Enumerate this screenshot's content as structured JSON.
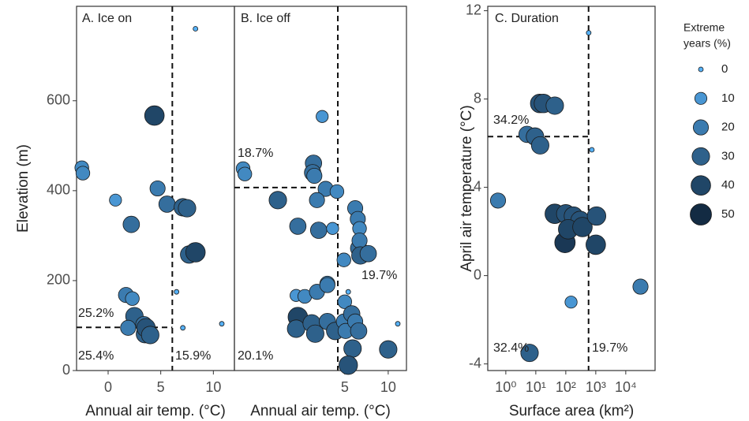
{
  "chart_data": [
    {
      "type": "scatter",
      "title": "A. Ice on",
      "x_label": "Annual air temp. (°C)",
      "y_label": "Elevation (m)",
      "xlim": [
        -3,
        12
      ],
      "ylim": [
        0,
        810
      ],
      "xticks": [
        0,
        5,
        10
      ],
      "yticks": [
        0,
        200,
        400,
        600
      ],
      "threshold_x": 6.1,
      "threshold_y": 96,
      "annotations": [
        "25.2%",
        "25.4%",
        "15.9%"
      ],
      "x": [
        -2.5,
        -2.4,
        0.7,
        2.2,
        4.4,
        4.7,
        5.6,
        7.1,
        7.5,
        7.7,
        8.3,
        8.3,
        1.7,
        2.3,
        2.5,
        1.9,
        3.4,
        3.5,
        3.6,
        4.0,
        6.5,
        7.1,
        10.8
      ],
      "y": [
        451,
        439,
        379,
        325,
        567,
        405,
        370,
        363,
        361,
        258,
        263,
        760,
        168,
        160,
        121,
        95,
        102,
        81,
        95,
        79,
        175,
        95,
        104
      ],
      "size": [
        15,
        15,
        10,
        25,
        40,
        20,
        25,
        30,
        30,
        30,
        40,
        0,
        20,
        15,
        30,
        20,
        25,
        30,
        35,
        30,
        0,
        0,
        0
      ]
    },
    {
      "type": "scatter",
      "title": "B. Ice off",
      "x_label": "Annual air temp. (°C)",
      "xlim": [
        -7.7,
        12.1
      ],
      "ylim": [
        0,
        810
      ],
      "xticks": [
        5,
        10
      ],
      "threshold_x": 4.2,
      "threshold_y": 407,
      "annotations": [
        "18.7%",
        "19.7%",
        "20.1%"
      ],
      "x": [
        -6.7,
        -6.5,
        -2.7,
        2.4,
        1.4,
        1.3,
        1.5,
        2.8,
        4.1,
        -0.4,
        1.8,
        2.0,
        3.6,
        6.2,
        6.5,
        6.7,
        6.6,
        6.7,
        6.8,
        7.7,
        4.9,
        -0.6,
        0.4,
        1.8,
        3.0,
        3.0,
        -0.4,
        -0.6,
        1.2,
        1.6,
        3.0,
        3.9,
        5.0,
        5.4,
        4.9,
        5.1,
        5.8,
        6.2,
        6.6,
        5.9,
        5.4,
        10.0,
        11.1
      ],
      "y": [
        449,
        437,
        379,
        565,
        461,
        440,
        433,
        404,
        398,
        321,
        379,
        312,
        316,
        361,
        337,
        316,
        272,
        289,
        256,
        260,
        246,
        167,
        165,
        175,
        193,
        190,
        119,
        93,
        105,
        82,
        109,
        88,
        153,
        175,
        109,
        88,
        126,
        109,
        88,
        49,
        12,
        47,
        104
      ],
      "size": [
        15,
        15,
        30,
        10,
        25,
        25,
        20,
        20,
        15,
        25,
        20,
        25,
        10,
        20,
        20,
        15,
        25,
        20,
        30,
        25,
        15,
        10,
        15,
        20,
        20,
        20,
        40,
        30,
        30,
        30,
        25,
        30,
        15,
        0,
        20,
        20,
        25,
        20,
        25,
        30,
        35,
        30,
        0
      ]
    },
    {
      "type": "scatter",
      "title": "C. Duration",
      "x_label": "Surface area (km²)",
      "y_label": "April air temperature (°C)",
      "xlog": true,
      "xlim": [
        0.25,
        95000
      ],
      "ylim": [
        -4.3,
        12.2
      ],
      "xticks": [
        {
          "value": 1,
          "label": "10⁰"
        },
        {
          "value": 10,
          "label": "10¹"
        },
        {
          "value": 100,
          "label": "10²"
        },
        {
          "value": 1000,
          "label": "10³"
        },
        {
          "value": 10000,
          "label": "10⁴"
        }
      ],
      "yticks": [
        -4,
        0,
        4,
        8,
        12
      ],
      "threshold_x": 575,
      "threshold_y": 6.3,
      "annotations": [
        "34.2%",
        "32.4%",
        "19.7%"
      ],
      "x": [
        0.55,
        5.1,
        9.4,
        14,
        13.5,
        18,
        43,
        43,
        100,
        180,
        300,
        94,
        120,
        360,
        1060,
        1000,
        150,
        6.2,
        31000,
        580,
        740
      ],
      "y": [
        3.4,
        6.4,
        6.3,
        5.9,
        7.8,
        7.8,
        7.7,
        2.8,
        2.8,
        2.7,
        2.5,
        1.5,
        2.1,
        2.2,
        2.7,
        1.4,
        -1.2,
        -3.5,
        -0.5,
        11.0,
        5.7
      ],
      "size": [
        20,
        25,
        30,
        30,
        35,
        35,
        30,
        40,
        35,
        35,
        35,
        45,
        40,
        40,
        35,
        40,
        10,
        30,
        20,
        0,
        0
      ]
    }
  ],
  "size_legend": {
    "title": [
      "Extreme",
      "years (%)"
    ],
    "values": [
      0,
      10,
      20,
      30,
      40,
      50
    ],
    "color_scale": [
      "#56B1F7",
      "#132B43"
    ]
  }
}
